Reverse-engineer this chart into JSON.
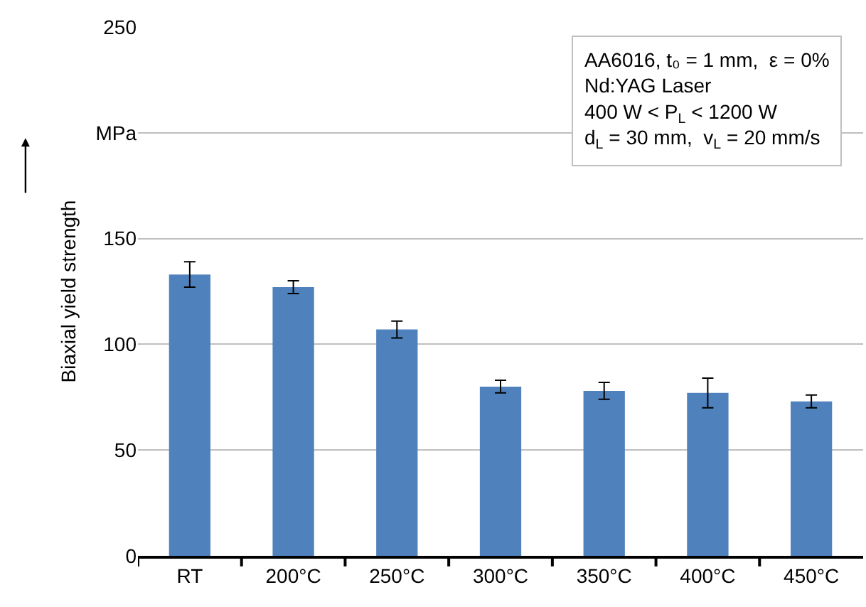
{
  "chart_data": {
    "type": "bar",
    "categories": [
      "RT",
      "200°C",
      "250°C",
      "300°C",
      "350°C",
      "400°C",
      "450°C"
    ],
    "values": [
      133,
      127,
      107,
      80,
      78,
      77,
      73
    ],
    "errors": [
      6,
      3,
      4,
      3,
      4,
      7,
      3
    ],
    "color": "#4f81bd",
    "ylabel": "Biaxial yield strength",
    "ylim": [
      0,
      250
    ],
    "yticks": [
      0,
      50,
      100,
      150,
      {
        "value": 200,
        "label": "MPa"
      },
      250
    ],
    "grid": "y",
    "annotations": [
      "AA6016, t₀ = 1 mm,  ε = 0%\nNd:YAG Laser\n400 W < P$_{L}$ < 1200 W\nd$_{L}$ = 30 mm,  v$_{L}$ = 20 mm/s"
    ]
  }
}
